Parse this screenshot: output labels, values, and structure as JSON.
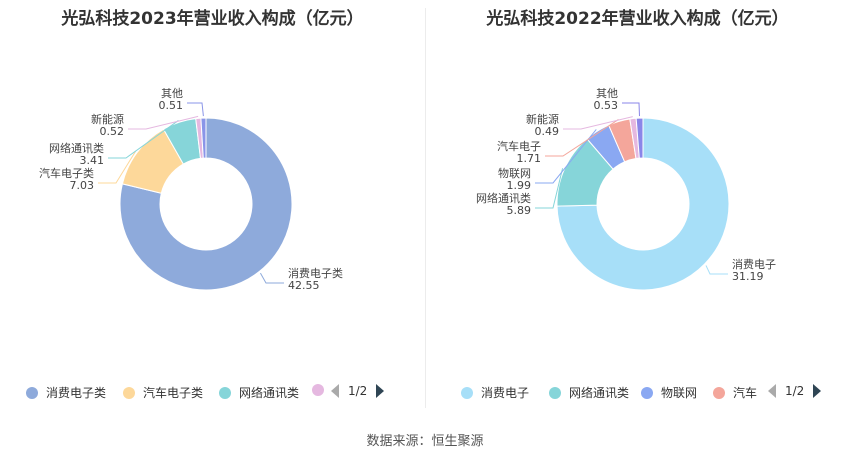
{
  "chart_data": [
    {
      "type": "pie",
      "title": "光弘科技2023年营业收入构成（亿元）",
      "series": [
        {
          "name": "消费电子类",
          "value": 42.55,
          "color": "#8eaadb"
        },
        {
          "name": "汽车电子类",
          "value": 7.03,
          "color": "#fdd89a"
        },
        {
          "name": "网络通讯类",
          "value": 3.41,
          "color": "#86d5d9"
        },
        {
          "name": "新能源",
          "value": 0.52,
          "color": "#e5b8e0"
        },
        {
          "name": "其他",
          "value": 0.51,
          "color": "#8a95e8"
        }
      ],
      "labels": [
        {
          "name": "消费电子类",
          "value": "42.55"
        },
        {
          "name": "汽车电子类",
          "value": "7.03"
        },
        {
          "name": "网络通讯类",
          "value": "3.41"
        },
        {
          "name": "新能源",
          "value": "0.52"
        },
        {
          "name": "其他",
          "value": "0.51"
        }
      ],
      "legend": {
        "items": [
          "消费电子类",
          "汽车电子类",
          "网络通讯类"
        ],
        "page": "1/2",
        "position": "bottom"
      }
    },
    {
      "type": "pie",
      "title": "光弘科技2022年营业收入构成（亿元）",
      "series": [
        {
          "name": "消费电子",
          "value": 31.19,
          "color": "#a7dff8"
        },
        {
          "name": "网络通讯类",
          "value": 5.89,
          "color": "#86d5d9"
        },
        {
          "name": "物联网",
          "value": 1.99,
          "color": "#8aa8f2"
        },
        {
          "name": "汽车电子",
          "value": 1.71,
          "color": "#f4a69b"
        },
        {
          "name": "新能源",
          "value": 0.49,
          "color": "#e5b8e0"
        },
        {
          "name": "其他",
          "value": 0.53,
          "color": "#8a86e8"
        }
      ],
      "labels": [
        {
          "name": "消费电子",
          "value": "31.19"
        },
        {
          "name": "网络通讯类",
          "value": "5.89"
        },
        {
          "name": "物联网",
          "value": "1.99"
        },
        {
          "name": "汽车电子",
          "value": "1.71"
        },
        {
          "name": "新能源",
          "value": "0.49"
        },
        {
          "name": "其他",
          "value": "0.53"
        }
      ],
      "legend": {
        "items": [
          "消费电子",
          "网络通讯类",
          "物联网",
          "汽车"
        ],
        "page": "1/2",
        "position": "bottom"
      }
    }
  ],
  "footer": {
    "source": "数据来源：恒生聚源"
  }
}
